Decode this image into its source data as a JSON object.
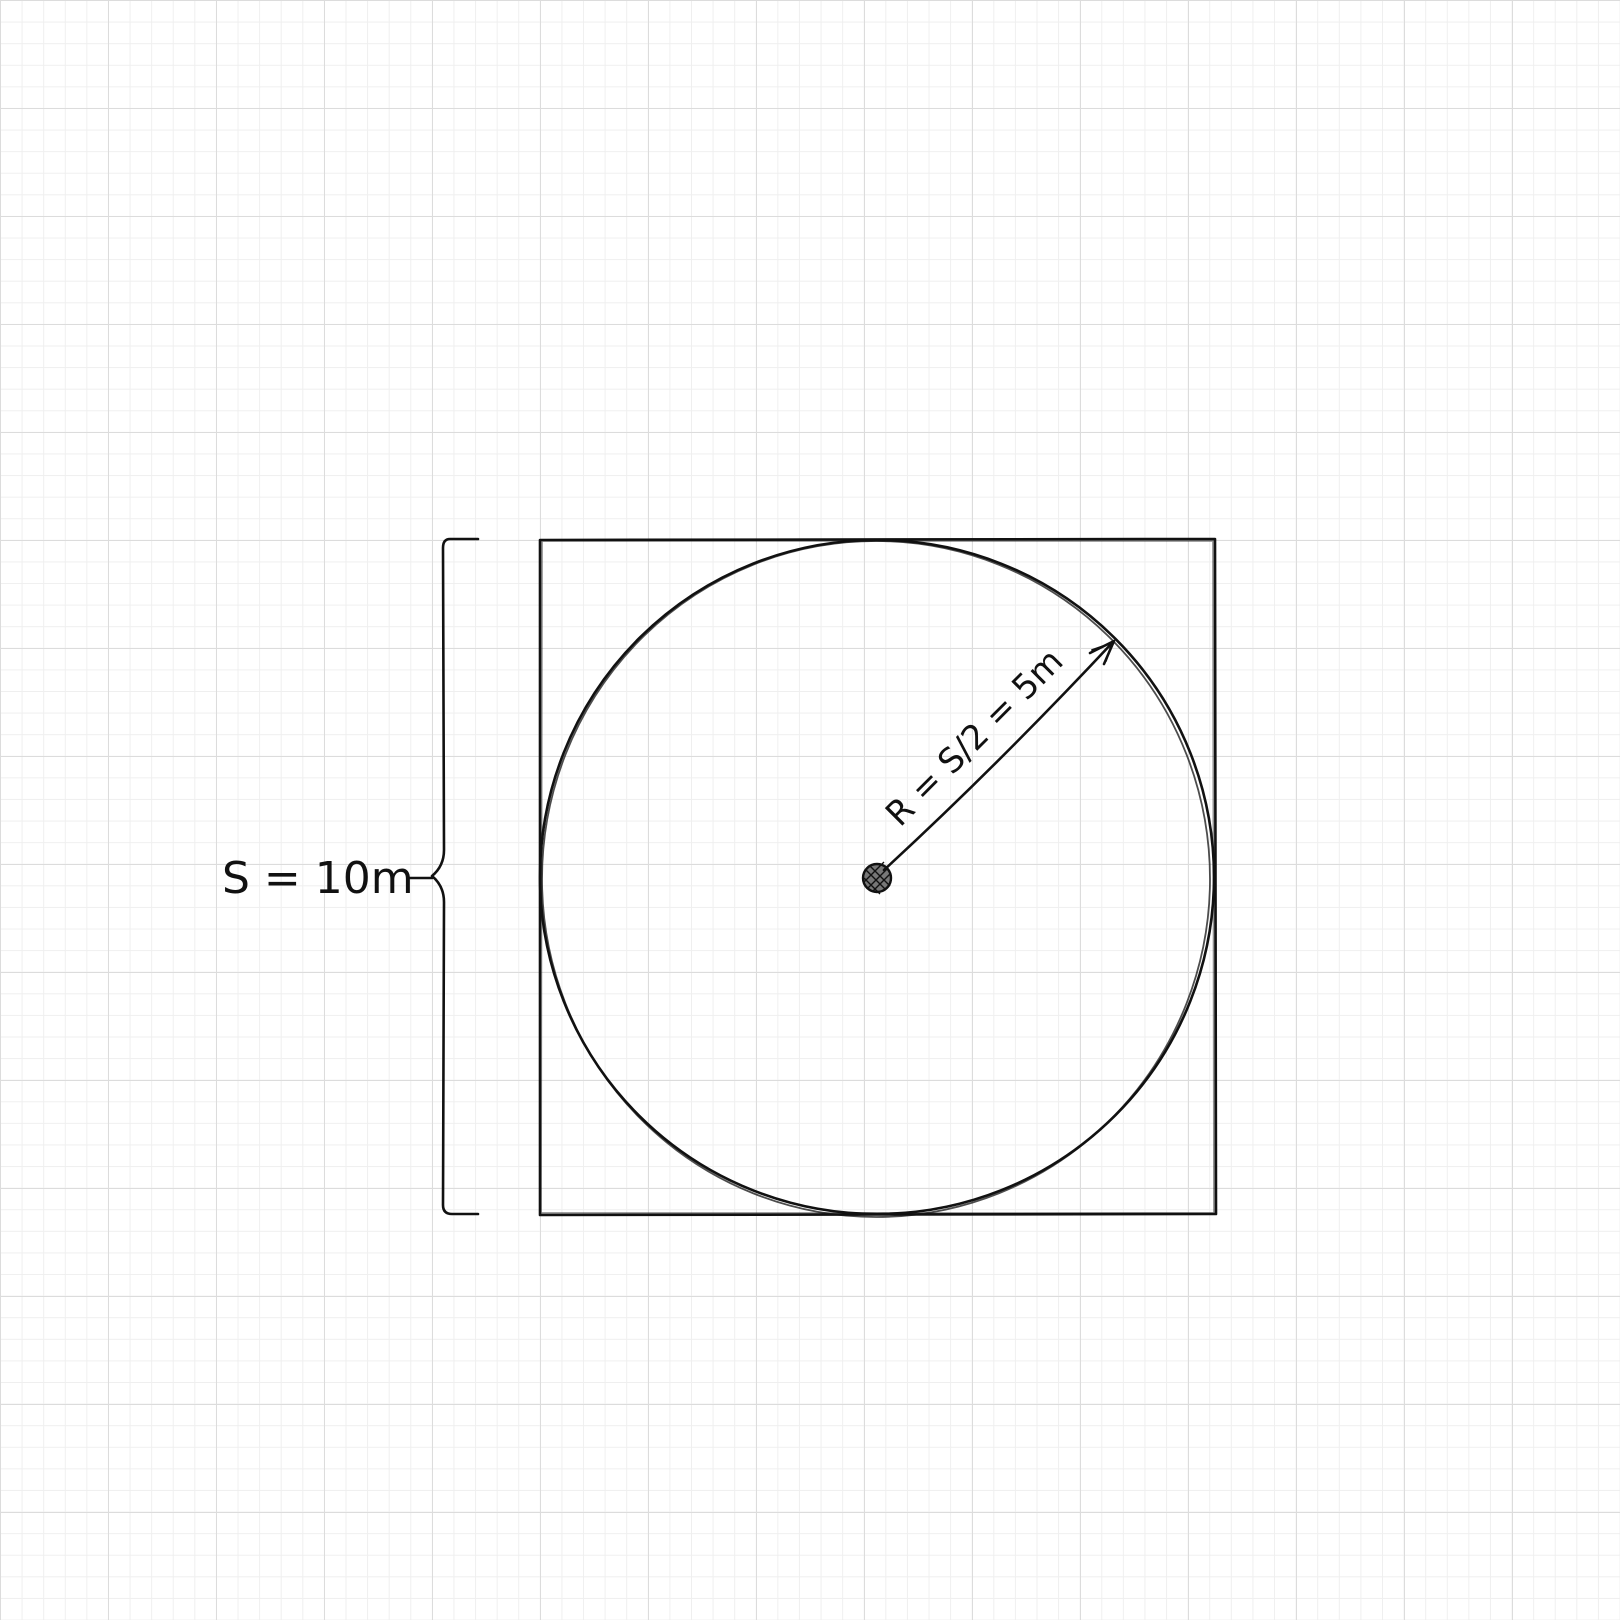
{
  "diagram": {
    "side_label": "S = 10m",
    "radius_label": "R = S/2 = 5m",
    "stroke_color": "#111111",
    "grid_color": "#dcdcdc",
    "background_color": "#ffffff"
  }
}
